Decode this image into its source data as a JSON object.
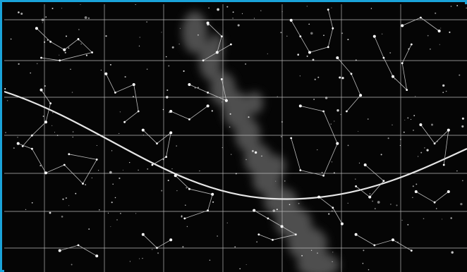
{
  "title": "",
  "colors": {
    "frame": "#1aa3d9",
    "sky": "#050505",
    "grid": "#b8b8b8",
    "ecliptic": "#e6e6e6",
    "milky_way": "#8a8a8a",
    "star": "#ffffff",
    "line": "#cfcfcf"
  },
  "map": {
    "grid_columns": 8,
    "grid_rows": 7,
    "ticks_top": [
      "",
      "",
      "",
      "",
      "",
      "",
      "",
      ""
    ],
    "ticks_bottom": [
      "",
      "",
      "",
      "",
      "",
      "",
      "",
      ""
    ],
    "ticks_left": [
      "",
      "",
      "",
      "",
      "",
      "",
      ""
    ],
    "ticks_right": [
      "",
      "",
      "",
      "",
      "",
      "",
      ""
    ]
  },
  "constellations": [
    {
      "name": "",
      "stars": [
        [
          0.07,
          0.09
        ],
        [
          0.1,
          0.14
        ],
        [
          0.13,
          0.17
        ],
        [
          0.16,
          0.13
        ],
        [
          0.19,
          0.18
        ],
        [
          0.12,
          0.21
        ],
        [
          0.08,
          0.2
        ]
      ]
    },
    {
      "name": "",
      "stars": [
        [
          0.08,
          0.32
        ],
        [
          0.1,
          0.37
        ],
        [
          0.09,
          0.44
        ],
        [
          0.06,
          0.49
        ],
        [
          0.04,
          0.53
        ]
      ]
    },
    {
      "name": "",
      "stars": [
        [
          0.03,
          0.52
        ],
        [
          0.06,
          0.54
        ],
        [
          0.09,
          0.63
        ],
        [
          0.13,
          0.6
        ],
        [
          0.17,
          0.67
        ],
        [
          0.2,
          0.58
        ],
        [
          0.14,
          0.56
        ]
      ]
    },
    {
      "name": "",
      "stars": [
        [
          0.22,
          0.26
        ],
        [
          0.24,
          0.33
        ],
        [
          0.28,
          0.3
        ],
        [
          0.29,
          0.4
        ],
        [
          0.26,
          0.44
        ]
      ]
    },
    {
      "name": "",
      "stars": [
        [
          0.3,
          0.47
        ],
        [
          0.33,
          0.52
        ],
        [
          0.36,
          0.48
        ],
        [
          0.35,
          0.57
        ],
        [
          0.32,
          0.6
        ]
      ]
    },
    {
      "name": "",
      "stars": [
        [
          0.36,
          0.4
        ],
        [
          0.4,
          0.43
        ],
        [
          0.44,
          0.38
        ]
      ]
    },
    {
      "name": "",
      "stars": [
        [
          0.37,
          0.64
        ],
        [
          0.4,
          0.69
        ],
        [
          0.45,
          0.71
        ],
        [
          0.44,
          0.77
        ],
        [
          0.39,
          0.8
        ]
      ]
    },
    {
      "name": "",
      "stars": [
        [
          0.4,
          0.3
        ],
        [
          0.44,
          0.33
        ],
        [
          0.48,
          0.36
        ],
        [
          0.47,
          0.28
        ]
      ]
    },
    {
      "name": "",
      "stars": [
        [
          0.44,
          0.07
        ],
        [
          0.47,
          0.12
        ],
        [
          0.46,
          0.18
        ],
        [
          0.43,
          0.21
        ],
        [
          0.49,
          0.15
        ]
      ]
    },
    {
      "name": "",
      "stars": [
        [
          0.62,
          0.06
        ],
        [
          0.64,
          0.12
        ],
        [
          0.66,
          0.18
        ],
        [
          0.7,
          0.16
        ],
        [
          0.71,
          0.09
        ],
        [
          0.7,
          0.02
        ]
      ]
    },
    {
      "name": "",
      "stars": [
        [
          0.64,
          0.38
        ],
        [
          0.69,
          0.4
        ],
        [
          0.72,
          0.52
        ],
        [
          0.69,
          0.64
        ],
        [
          0.64,
          0.62
        ],
        [
          0.62,
          0.5
        ]
      ]
    },
    {
      "name": "",
      "stars": [
        [
          0.72,
          0.2
        ],
        [
          0.75,
          0.26
        ],
        [
          0.77,
          0.34
        ],
        [
          0.74,
          0.4
        ]
      ]
    },
    {
      "name": "",
      "stars": [
        [
          0.8,
          0.12
        ],
        [
          0.82,
          0.2
        ],
        [
          0.84,
          0.27
        ],
        [
          0.87,
          0.32
        ],
        [
          0.86,
          0.22
        ],
        [
          0.88,
          0.15
        ]
      ]
    },
    {
      "name": "",
      "stars": [
        [
          0.9,
          0.45
        ],
        [
          0.93,
          0.52
        ],
        [
          0.96,
          0.47
        ],
        [
          0.95,
          0.6
        ]
      ]
    },
    {
      "name": "",
      "stars": [
        [
          0.78,
          0.6
        ],
        [
          0.82,
          0.66
        ],
        [
          0.79,
          0.72
        ],
        [
          0.76,
          0.68
        ]
      ]
    },
    {
      "name": "",
      "stars": [
        [
          0.54,
          0.77
        ],
        [
          0.57,
          0.8
        ],
        [
          0.6,
          0.83
        ],
        [
          0.63,
          0.86
        ],
        [
          0.58,
          0.88
        ],
        [
          0.55,
          0.86
        ]
      ]
    },
    {
      "name": "",
      "stars": [
        [
          0.68,
          0.72
        ],
        [
          0.71,
          0.76
        ],
        [
          0.73,
          0.82
        ]
      ]
    },
    {
      "name": "",
      "stars": [
        [
          0.76,
          0.86
        ],
        [
          0.8,
          0.9
        ],
        [
          0.84,
          0.88
        ],
        [
          0.88,
          0.92
        ]
      ]
    },
    {
      "name": "",
      "stars": [
        [
          0.12,
          0.92
        ],
        [
          0.16,
          0.9
        ],
        [
          0.2,
          0.94
        ]
      ]
    },
    {
      "name": "",
      "stars": [
        [
          0.3,
          0.86
        ],
        [
          0.33,
          0.91
        ],
        [
          0.36,
          0.88
        ]
      ]
    },
    {
      "name": "",
      "stars": [
        [
          0.86,
          0.08
        ],
        [
          0.9,
          0.05
        ],
        [
          0.94,
          0.1
        ]
      ]
    },
    {
      "name": "",
      "stars": [
        [
          0.89,
          0.7
        ],
        [
          0.93,
          0.74
        ],
        [
          0.96,
          0.7
        ]
      ]
    }
  ]
}
